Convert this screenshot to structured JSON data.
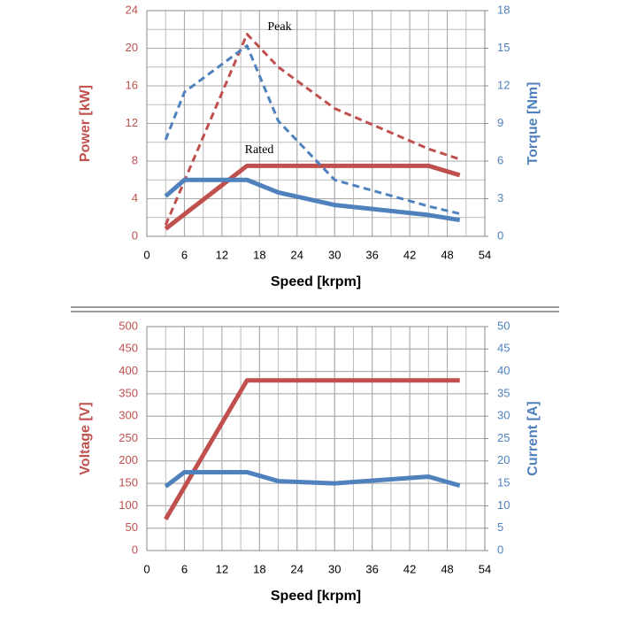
{
  "chart_data": [
    {
      "type": "line",
      "xlabel": "Speed [krpm]",
      "ylabel": "Power [kW]",
      "y2label": "Torque [Nm]",
      "xlim": [
        0,
        54
      ],
      "xticks": [
        0,
        6,
        12,
        18,
        24,
        30,
        36,
        42,
        48,
        54
      ],
      "ylim": [
        0,
        24
      ],
      "yticks": [
        0,
        4,
        8,
        12,
        16,
        20,
        24
      ],
      "y2lim": [
        0,
        18
      ],
      "y2ticks": [
        0,
        3,
        6,
        9,
        12,
        15,
        18
      ],
      "grid": true,
      "x_minor_step": 3,
      "y_minor_step": 2,
      "ycolor": "#c0504d",
      "y2color": "#4f81bd",
      "annotations": [
        "Peak",
        "Rated"
      ],
      "series": [
        {
          "color": "#c0504d",
          "dashed": true,
          "x": [
            3,
            16,
            21,
            30,
            45,
            50
          ],
          "values": [
            1.2,
            21.5,
            18,
            13.6,
            9.3,
            8.2
          ]
        },
        {
          "color": "#c0504d",
          "dashed": false,
          "x": [
            3,
            16,
            45,
            50
          ],
          "values": [
            0.8,
            7.5,
            7.5,
            6.5
          ]
        },
        {
          "color": "#4f81bd",
          "dashed": true,
          "axis": "y2",
          "x": [
            3,
            6,
            16,
            21,
            30,
            45,
            50
          ],
          "values": [
            7.7,
            11.5,
            15.2,
            9.2,
            4.5,
            2.4,
            1.8
          ]
        },
        {
          "color": "#4f81bd",
          "dashed": false,
          "axis": "y2",
          "x": [
            3,
            6,
            16,
            21,
            30,
            45,
            50
          ],
          "values": [
            3.2,
            4.5,
            4.5,
            3.5,
            2.5,
            1.7,
            1.3
          ]
        }
      ]
    },
    {
      "type": "line",
      "xlabel": "Speed [krpm]",
      "ylabel": "Voltage [V]",
      "y2label": "Current [A]",
      "xlim": [
        0,
        54
      ],
      "xticks": [
        0,
        6,
        12,
        18,
        24,
        30,
        36,
        42,
        48,
        54
      ],
      "ylim": [
        0,
        500
      ],
      "yticks": [
        0,
        50,
        100,
        150,
        200,
        250,
        300,
        350,
        400,
        450,
        500
      ],
      "y2lim": [
        0,
        50
      ],
      "y2ticks": [
        0,
        5,
        10,
        15,
        20,
        25,
        30,
        35,
        40,
        45,
        50
      ],
      "grid": true,
      "x_minor_step": 3,
      "y_minor_step": 50,
      "ycolor": "#c0504d",
      "y2color": "#4f81bd",
      "series": [
        {
          "color": "#c0504d",
          "dashed": false,
          "x": [
            3,
            16,
            50
          ],
          "values": [
            70,
            380,
            380
          ]
        },
        {
          "color": "#4f81bd",
          "dashed": false,
          "axis": "y2",
          "x": [
            3,
            6,
            16,
            21,
            30,
            45,
            50
          ],
          "values": [
            14.3,
            17.5,
            17.5,
            15.5,
            15,
            16.5,
            14.5
          ]
        }
      ]
    }
  ]
}
